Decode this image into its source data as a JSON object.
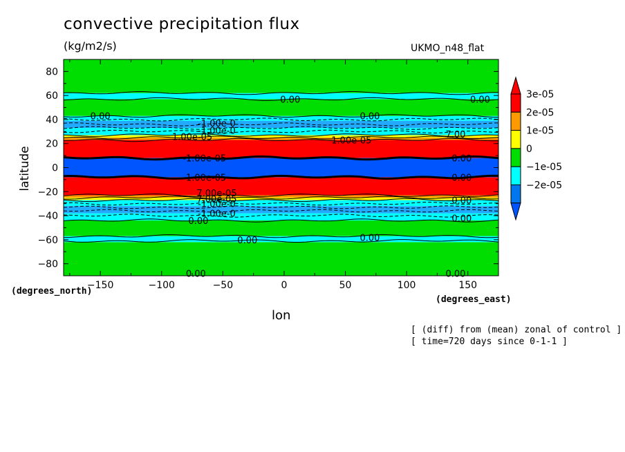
{
  "chart_data": {
    "type": "heatmap",
    "title": "convective precipitation flux",
    "units": "(kg/m2/s)",
    "model_label": "UKMO_n48_flat",
    "xlabel": "lon",
    "ylabel": "latitude",
    "x_unit_label": "(degrees_east)",
    "y_unit_label": "(degrees_north)",
    "xlim": [
      -180,
      175
    ],
    "ylim": [
      -90,
      90
    ],
    "x_ticks": [
      -150,
      -100,
      -50,
      0,
      50,
      100,
      150
    ],
    "y_ticks": [
      80,
      60,
      40,
      20,
      0,
      -20,
      -40,
      -60,
      -80
    ],
    "colorbar": {
      "levels": [
        {
          "label": "3e-05",
          "value": 3e-05,
          "color": "#ff0000"
        },
        {
          "label": "2e-05",
          "value": 2e-05,
          "color": "#ff9900"
        },
        {
          "label": "1e-05",
          "value": 1e-05,
          "color": "#ffff00"
        },
        {
          "label": "0",
          "value": 0,
          "color": "#00dd00"
        },
        {
          "label": "−1e-05",
          "value": -1e-05,
          "color": "#00ffff"
        },
        {
          "label": "−2e-05",
          "value": -2e-05,
          "color": "#0077ee"
        }
      ],
      "extend_colors": {
        "top": "#ff0000",
        "bottom": "#0055ff"
      }
    },
    "bands": [
      {
        "lat_from": -90,
        "lat_to": -62,
        "color": "#00dd00"
      },
      {
        "lat_from": -62,
        "lat_to": -57,
        "color": "#00ffff"
      },
      {
        "lat_from": -57,
        "lat_to": -44,
        "color": "#00dd00"
      },
      {
        "lat_from": -44,
        "lat_to": -38,
        "color": "#00ffff"
      },
      {
        "lat_from": -38,
        "lat_to": -32,
        "color": "#22aaff"
      },
      {
        "lat_from": -32,
        "lat_to": -27,
        "color": "#00ffff"
      },
      {
        "lat_from": -27,
        "lat_to": -25,
        "color": "#ffff00"
      },
      {
        "lat_from": -25,
        "lat_to": -23,
        "color": "#ff9900"
      },
      {
        "lat_from": -23,
        "lat_to": -8,
        "color": "#ff0000"
      },
      {
        "lat_from": -8,
        "lat_to": 8,
        "color": "#0055ff"
      },
      {
        "lat_from": 8,
        "lat_to": 23,
        "color": "#ff0000"
      },
      {
        "lat_from": 23,
        "lat_to": 25,
        "color": "#ff9900"
      },
      {
        "lat_from": 25,
        "lat_to": 27,
        "color": "#ffff00"
      },
      {
        "lat_from": 27,
        "lat_to": 33,
        "color": "#00ffff"
      },
      {
        "lat_from": 33,
        "lat_to": 39,
        "color": "#22aaff"
      },
      {
        "lat_from": 39,
        "lat_to": 43,
        "color": "#00ffff"
      },
      {
        "lat_from": 43,
        "lat_to": 57,
        "color": "#00dd00"
      },
      {
        "lat_from": 57,
        "lat_to": 62,
        "color": "#00ffff"
      },
      {
        "lat_from": 62,
        "lat_to": 90,
        "color": "#00dd00"
      }
    ],
    "contour_lines": [
      -61,
      -57,
      -44,
      -40,
      -36,
      -33,
      -30,
      -27,
      -25,
      -23,
      -8,
      8,
      23,
      25,
      27,
      30,
      33,
      36,
      40,
      43,
      57,
      62
    ],
    "contour_labels": [
      {
        "text": "0.00",
        "lon": -150,
        "lat": 43
      },
      {
        "text": "0.00",
        "lon": 5,
        "lat": 57
      },
      {
        "text": "0.00",
        "lon": 160,
        "lat": 57
      },
      {
        "text": "0.00",
        "lon": 70,
        "lat": 43
      },
      {
        "text": "-1.00e-0",
        "lon": -55,
        "lat": 37
      },
      {
        "text": "-1.00e-0",
        "lon": -55,
        "lat": 31
      },
      {
        "text": "1.00e-05",
        "lon": -75,
        "lat": 26
      },
      {
        "text": "1.00e-05",
        "lon": 55,
        "lat": 23
      },
      {
        "text": "7.00",
        "lon": 140,
        "lat": 28
      },
      {
        "text": "-1.00e-05",
        "lon": -65,
        "lat": 8
      },
      {
        "text": "0.00",
        "lon": 145,
        "lat": 8
      },
      {
        "text": "-1.00e-05",
        "lon": -65,
        "lat": -8
      },
      {
        "text": "0.00",
        "lon": 145,
        "lat": -8
      },
      {
        "text": "7.00e-05",
        "lon": -55,
        "lat": -21
      },
      {
        "text": "7.00e-05",
        "lon": -55,
        "lat": -26
      },
      {
        "text": "-1.00e-0",
        "lon": -55,
        "lat": -30
      },
      {
        "text": "0.00",
        "lon": 145,
        "lat": -27
      },
      {
        "text": "-1.00e-0",
        "lon": -55,
        "lat": -38
      },
      {
        "text": "0.00",
        "lon": -70,
        "lat": -44
      },
      {
        "text": "0.00",
        "lon": 145,
        "lat": -42
      },
      {
        "text": "0.00",
        "lon": -30,
        "lat": -60
      },
      {
        "text": "0.00",
        "lon": 70,
        "lat": -58
      },
      {
        "text": "0.00",
        "lon": -72,
        "lat": -88
      },
      {
        "text": "0.00",
        "lon": 140,
        "lat": -88
      }
    ]
  },
  "notes": {
    "line1": "[ (diff) from (mean) zonal of control ]",
    "line2": "[ time=720 days since 0-1-1 ]"
  }
}
